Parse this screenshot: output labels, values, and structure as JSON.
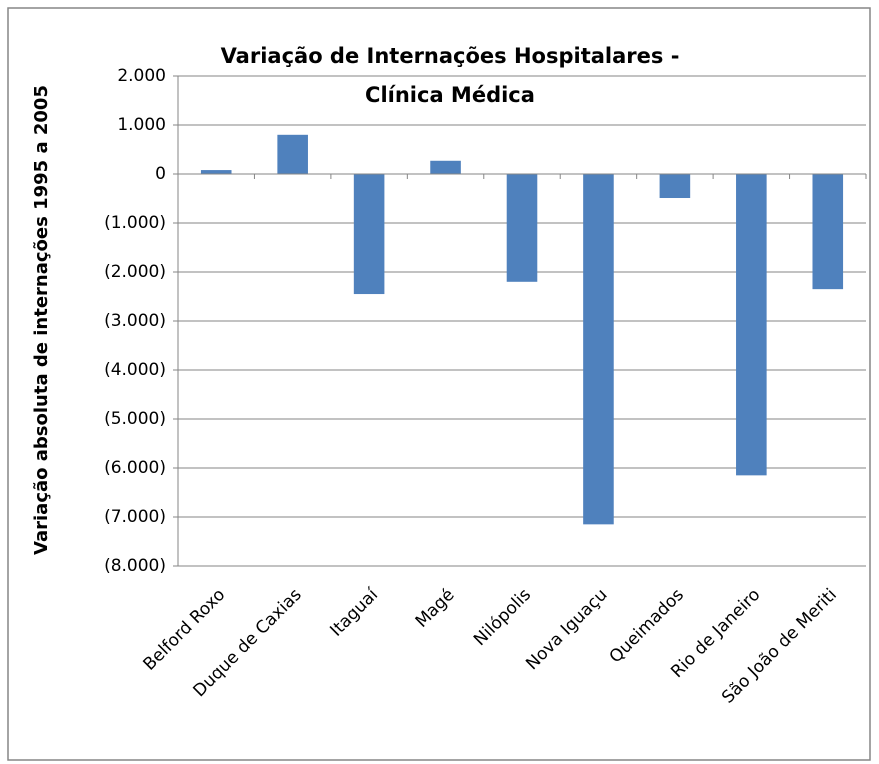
{
  "chart_data": {
    "type": "bar",
    "title": "Variação de Internações Hospitalares - Clínica Médica",
    "y_axis_label": "Variação absoluta de internações 1995 a 2005",
    "categories": [
      "Belford Roxo",
      "Duque de Caxias",
      "Itaguaí",
      "Magé",
      "Nilópolis",
      "Nova Iguaçu",
      "Queimados",
      "Rio de Janeiro",
      "São João de Meriti"
    ],
    "values": [
      80,
      800,
      -2450,
      270,
      -2200,
      -7150,
      -490,
      -6150,
      -2350
    ],
    "color": "#4f81bd",
    "negative_tick_color": "#ff0000",
    "ylim": [
      -8000,
      2000
    ],
    "yticks": [
      {
        "value": 2000,
        "label": "2.000"
      },
      {
        "value": 1000,
        "label": "1.000"
      },
      0,
      {
        "value": -1000,
        "label": "(1.000)"
      },
      {
        "value": -2000,
        "label": "(2.000)"
      },
      {
        "value": -3000,
        "label": "(3.000)"
      },
      {
        "value": -4000,
        "label": "(4.000)"
      },
      {
        "value": -5000,
        "label": "(5.000)"
      },
      {
        "value": -6000,
        "label": "(6.000)"
      },
      {
        "value": -7000,
        "label": "(7.000)"
      },
      {
        "value": -8000,
        "label": "(8.000)"
      }
    ],
    "grid": true
  }
}
